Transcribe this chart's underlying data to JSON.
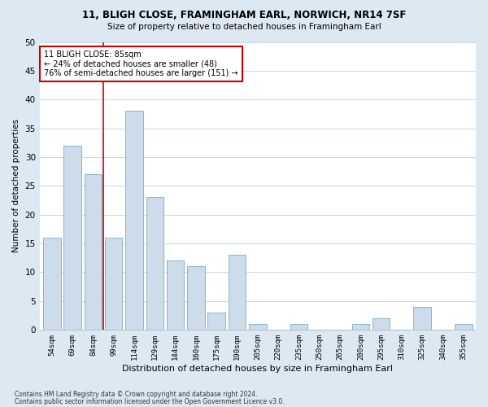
{
  "title1": "11, BLIGH CLOSE, FRAMINGHAM EARL, NORWICH, NR14 7SF",
  "title2": "Size of property relative to detached houses in Framingham Earl",
  "xlabel": "Distribution of detached houses by size in Framingham Earl",
  "ylabel": "Number of detached properties",
  "footnote1": "Contains HM Land Registry data © Crown copyright and database right 2024.",
  "footnote2": "Contains public sector information licensed under the Open Government Licence v3.0.",
  "categories": [
    "54sqm",
    "69sqm",
    "84sqm",
    "99sqm",
    "114sqm",
    "129sqm",
    "144sqm",
    "160sqm",
    "175sqm",
    "190sqm",
    "205sqm",
    "220sqm",
    "235sqm",
    "250sqm",
    "265sqm",
    "280sqm",
    "295sqm",
    "310sqm",
    "325sqm",
    "340sqm",
    "355sqm"
  ],
  "values": [
    16,
    32,
    27,
    16,
    38,
    23,
    12,
    11,
    3,
    13,
    1,
    0,
    1,
    0,
    0,
    1,
    2,
    0,
    4,
    0,
    1
  ],
  "bar_color": "#cddceb",
  "bar_edge_color": "#7aacc8",
  "bar_width": 0.85,
  "vline_x": 2.5,
  "vline_color": "#cc0000",
  "annotation_text": "11 BLIGH CLOSE: 85sqm\n← 24% of detached houses are smaller (48)\n76% of semi-detached houses are larger (151) →",
  "annotation_box_color": "#ffffff",
  "annotation_box_edge": "#cc0000",
  "ylim": [
    0,
    50
  ],
  "yticks": [
    0,
    5,
    10,
    15,
    20,
    25,
    30,
    35,
    40,
    45,
    50
  ],
  "bg_color": "#dce9f3",
  "plot_bg": "#ffffff",
  "grid_color": "#c8d8e8"
}
